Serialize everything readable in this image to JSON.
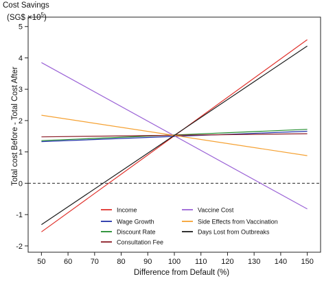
{
  "title_line1": "Cost Savings",
  "title_line2": "(SG$ ×10",
  "title_exp": "5",
  "title_close": ")",
  "chart_data": {
    "type": "line",
    "xlabel": "Difference from Default (%)",
    "ylabel": "Total cost Before - Total Cost After",
    "xlim": [
      50,
      150
    ],
    "ylim": [
      -2,
      5
    ],
    "xticks": [
      50,
      60,
      70,
      80,
      90,
      100,
      110,
      120,
      130,
      140,
      150
    ],
    "yticks": [
      -2,
      -1,
      0,
      1,
      2,
      3,
      4,
      5
    ],
    "reference_line": 0,
    "grid": false,
    "legend_position": "bottom-center",
    "series": [
      {
        "name": "Income",
        "color": "#e0302a",
        "x": [
          50,
          150
        ],
        "y": [
          -1.55,
          4.58
        ]
      },
      {
        "name": "Wage Growth",
        "color": "#1f2fa8",
        "x": [
          50,
          150
        ],
        "y": [
          1.33,
          1.66
        ]
      },
      {
        "name": "Discount Rate",
        "color": "#1e8a2a",
        "x": [
          50,
          150
        ],
        "y": [
          1.36,
          1.72
        ]
      },
      {
        "name": "Consultation Fee",
        "color": "#8a1a24",
        "x": [
          50,
          150
        ],
        "y": [
          1.48,
          1.58
        ]
      },
      {
        "name": "Vaccine Cost",
        "color": "#9a62d6",
        "x": [
          50,
          150
        ],
        "y": [
          3.85,
          -0.82
        ]
      },
      {
        "name": "Side Effects from Vaccination",
        "color": "#f5a030",
        "x": [
          50,
          150
        ],
        "y": [
          2.17,
          0.88
        ]
      },
      {
        "name": "Days Lost from Outbreaks",
        "color": "#1a1a1a",
        "x": [
          50,
          150
        ],
        "y": [
          -1.32,
          4.38
        ]
      }
    ]
  }
}
